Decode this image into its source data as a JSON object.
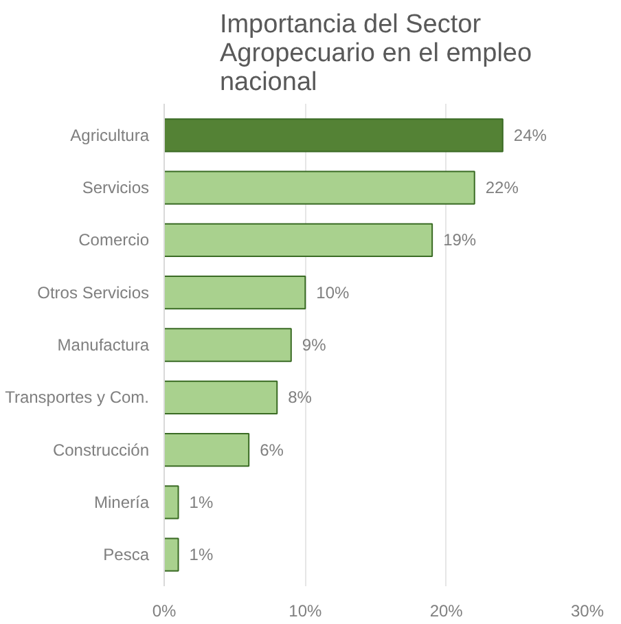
{
  "chart_data": {
    "type": "bar",
    "orientation": "horizontal",
    "title": "Importancia del Sector Agropecuario en el empleo nacional",
    "categories": [
      "Agricultura",
      "Servicios",
      "Comercio",
      "Otros Servicios",
      "Manufactura",
      "Transportes y Com.",
      "Construcción",
      "Minería",
      "Pesca"
    ],
    "values": [
      24,
      22,
      19,
      10,
      9,
      8,
      6,
      1,
      1
    ],
    "colors": [
      "#548235",
      "#a9d18e",
      "#a9d18e",
      "#a9d18e",
      "#a9d18e",
      "#a9d18e",
      "#a9d18e",
      "#a9d18e",
      "#a9d18e"
    ],
    "value_labels": [
      "24%",
      "22%",
      "19%",
      "10%",
      "9%",
      "8%",
      "6%",
      "1%",
      "1%"
    ],
    "xlim": [
      0,
      30
    ],
    "xticks": [
      {
        "value": 0,
        "label": "0%"
      },
      {
        "value": 10,
        "label": "10%"
      },
      {
        "value": 20,
        "label": "20%"
      },
      {
        "value": 30,
        "label": "30%"
      }
    ],
    "grid": "x"
  }
}
